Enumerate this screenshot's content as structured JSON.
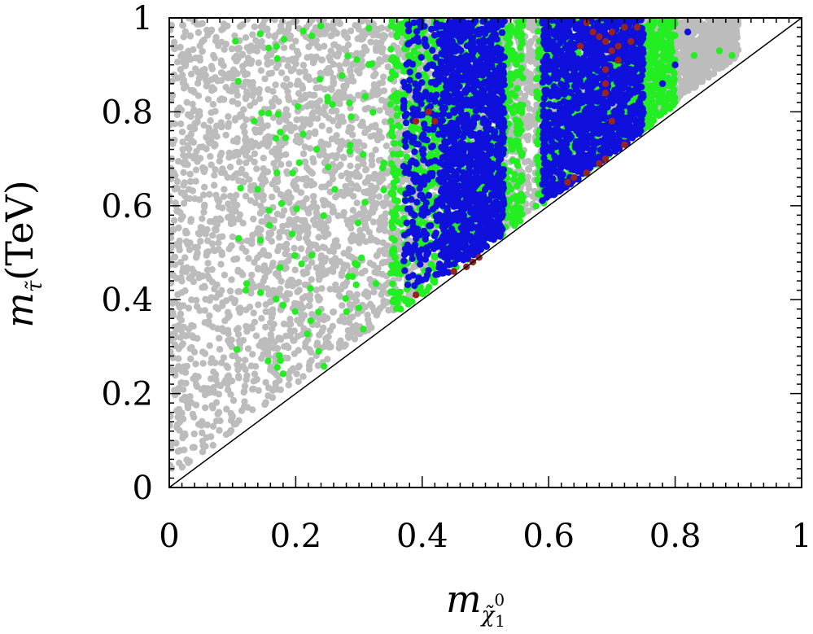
{
  "chart_data": {
    "type": "scatter",
    "title": "",
    "xlabel": {
      "base": "m",
      "subscript": "χ̃",
      "sub_super": "0",
      "sub_sub": "1"
    },
    "ylabel": {
      "base": "m",
      "subscript": "τ̃",
      "suffix": "(TeV)"
    },
    "xlim": [
      0,
      1
    ],
    "ylim": [
      0,
      1
    ],
    "xticks": [
      "0",
      "0.2",
      "0.4",
      "0.6",
      "0.8",
      "1"
    ],
    "yticks": [
      "0",
      "0.2",
      "0.4",
      "0.6",
      "0.8",
      "1"
    ],
    "grid": false,
    "legend": "none",
    "reference_line": {
      "description": "diagonal y = x",
      "from": [
        0,
        0
      ],
      "to": [
        1,
        1
      ],
      "color": "#000000"
    },
    "series": [
      {
        "color": "#bcbcbc",
        "regions": [
          {
            "x_range": [
              0.0,
              0.9
            ],
            "y_range": [
              0.02,
              1.0
            ],
            "constraint": "y >= x + 0.02"
          }
        ]
      },
      {
        "color": "#22ee22",
        "regions": [
          {
            "x_range": [
              0.1,
              0.34
            ],
            "y_range": [
              0.24,
              1.0
            ],
            "density": "sparse"
          },
          {
            "x_range": [
              0.35,
              0.56
            ],
            "y_range": [
              0.37,
              1.0
            ],
            "density": "dense"
          },
          {
            "x_range": [
              0.58,
              0.8
            ],
            "y_range": [
              0.58,
              1.0
            ],
            "density": "dense"
          }
        ],
        "points": [
          [
            0.89,
            0.92
          ],
          [
            0.83,
            0.92
          ],
          [
            0.87,
            0.93
          ],
          [
            0.78,
            0.95
          ]
        ]
      },
      {
        "color": "#1010dd",
        "regions": [
          {
            "x_range": [
              0.37,
              0.43
            ],
            "y_range": [
              0.43,
              1.0
            ],
            "density": "medium"
          },
          {
            "x_range": [
              0.43,
              0.53
            ],
            "y_range": [
              0.45,
              1.0
            ],
            "density": "dense"
          },
          {
            "x_range": [
              0.59,
              0.75
            ],
            "y_range": [
              0.6,
              1.0
            ],
            "density": "dense"
          }
        ],
        "points": [
          [
            0.82,
            0.97
          ],
          [
            0.8,
            0.9
          ],
          [
            0.78,
            0.86
          ]
        ]
      },
      {
        "color": "#992222",
        "points": [
          [
            0.39,
            0.78
          ],
          [
            0.42,
            0.78
          ],
          [
            0.41,
            0.8
          ],
          [
            0.39,
            0.41
          ],
          [
            0.45,
            0.46
          ],
          [
            0.47,
            0.47
          ],
          [
            0.48,
            0.48
          ],
          [
            0.49,
            0.49
          ],
          [
            0.63,
            0.65
          ],
          [
            0.64,
            0.66
          ],
          [
            0.66,
            0.67
          ],
          [
            0.68,
            0.69
          ],
          [
            0.69,
            0.7
          ],
          [
            0.72,
            0.73
          ],
          [
            0.66,
            0.99
          ],
          [
            0.68,
            0.96
          ],
          [
            0.69,
            0.95
          ],
          [
            0.7,
            0.97
          ],
          [
            0.7,
            0.93
          ],
          [
            0.71,
            0.94
          ],
          [
            0.69,
            0.89
          ],
          [
            0.69,
            0.86
          ],
          [
            0.72,
            0.98
          ],
          [
            0.71,
            0.91
          ],
          [
            0.74,
            0.98
          ],
          [
            0.73,
            0.95
          ],
          [
            0.7,
            0.78
          ],
          [
            0.69,
            0.84
          ],
          [
            0.65,
            0.94
          ],
          [
            0.67,
            0.97
          ]
        ]
      }
    ]
  }
}
